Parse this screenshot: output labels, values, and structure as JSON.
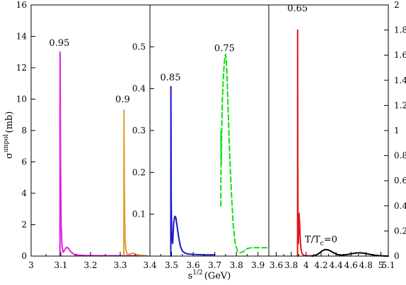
{
  "chart_data": {
    "type": "line",
    "xlabel": "s",
    "xlabel_sup": "1/2",
    "xlabel_unit": "(GeV)",
    "ylabel": "σ",
    "ylabel_sup": "unpol",
    "ylabel_unit": "(mb)",
    "grid": false,
    "panels": [
      {
        "id": "p1",
        "xlim": [
          3.0,
          3.4
        ],
        "ylim": [
          0,
          16
        ],
        "x_ticks": [
          "3",
          "3.1",
          "3.2",
          "3.3",
          "3.4"
        ],
        "y_ticks": [
          "0",
          "2",
          "4",
          "6",
          "8",
          "10",
          "12",
          "14",
          "16"
        ],
        "y_axis_side": "left",
        "series": [
          {
            "color": "#e020e0",
            "dash": false,
            "label": "0.95",
            "label_at": [
              3.095,
              13.4
            ],
            "x": [
              3.097,
              3.0975,
              3.099,
              3.101,
              3.104,
              3.108,
              3.112,
              3.117,
              3.122,
              3.128,
              3.135,
              3.145,
              3.16,
              3.18,
              3.21,
              3.26,
              3.3,
              3.34,
              3.38
            ],
            "y": [
              0.05,
              13.0,
              6.0,
              2.0,
              0.6,
              0.25,
              0.35,
              0.52,
              0.55,
              0.42,
              0.25,
              0.1,
              0.06,
              0.04,
              0.03,
              0.02,
              0.02,
              0.02,
              0.02
            ]
          },
          {
            "color": "#e0a030",
            "dash": false,
            "label": "0.9",
            "label_at": [
              3.308,
              9.8
            ],
            "x": [
              3.312,
              3.3125,
              3.314,
              3.316,
              3.319,
              3.323,
              3.328,
              3.333,
              3.339,
              3.346,
              3.355,
              3.37,
              3.39
            ],
            "y": [
              0.05,
              9.3,
              4.2,
              1.2,
              0.4,
              0.15,
              0.1,
              0.12,
              0.18,
              0.18,
              0.1,
              0.05,
              0.03
            ]
          }
        ]
      },
      {
        "id": "p2",
        "xlim": [
          3.4,
          3.95
        ],
        "ylim": [
          0,
          0.6
        ],
        "x_ticks": [
          "3.5",
          "3.6",
          "3.7",
          "3.8",
          "3.9"
        ],
        "y_ticks": [
          "0.1",
          "0.2",
          "0.3",
          "0.4",
          "0.5"
        ],
        "y_axis_side": "left",
        "series": [
          {
            "color": "#1818d0",
            "dash": false,
            "label": "0.85",
            "label_at": [
              3.495,
              0.42
            ],
            "x": [
              3.4965,
              3.497,
              3.4985,
              3.501,
              3.505,
              3.51,
              3.515,
              3.52,
              3.526,
              3.533,
              3.54,
              3.55,
              3.56,
              3.575,
              3.6,
              3.65,
              3.7
            ],
            "y": [
              0.0,
              0.405,
              0.13,
              0.04,
              0.03,
              0.08,
              0.095,
              0.092,
              0.07,
              0.045,
              0.025,
              0.012,
              0.008,
              0.005,
              0.004,
              0.003,
              0.003
            ]
          },
          {
            "color": "#10e010",
            "dash": true,
            "label": "0.75",
            "label_at": [
              3.745,
              0.49
            ],
            "x": [
              3.728,
              3.729,
              3.73,
              3.732,
              3.735,
              3.738,
              3.741,
              3.744,
              3.747,
              3.75,
              3.753,
              3.756,
              3.76,
              3.765,
              3.77,
              3.778,
              3.786,
              3.795,
              3.805,
              3.815,
              3.83,
              3.85,
              3.87,
              3.9,
              3.94
            ],
            "y": [
              0.12,
              0.3,
              0.22,
              0.3,
              0.37,
              0.41,
              0.44,
              0.46,
              0.475,
              0.482,
              0.47,
              0.44,
              0.38,
              0.3,
              0.23,
              0.14,
              0.07,
              0.03,
              0.012,
              0.008,
              0.01,
              0.018,
              0.02,
              0.02,
              0.02
            ]
          }
        ]
      },
      {
        "id": "p3",
        "xlim": [
          3.5,
          5.1
        ],
        "ylim": [
          0,
          2
        ],
        "x_ticks": [
          "3.6",
          "3.8",
          "4",
          "4.2",
          "4.4",
          "4.6",
          "4.8",
          "5",
          "5.1"
        ],
        "y_ticks": [
          "0",
          "0.2",
          "0.4",
          "0.6",
          "0.8",
          "1",
          "1.2",
          "1.4",
          "1.6",
          "1.8",
          "2"
        ],
        "y_axis_side": "right",
        "series": [
          {
            "color": "#e01818",
            "dash": false,
            "label": "0.65",
            "label_at": [
              3.885,
              1.95
            ],
            "x": [
              3.885,
              3.886,
              3.888,
              3.892,
              3.897,
              3.902,
              3.906,
              3.912,
              3.92,
              3.93,
              3.945,
              3.97,
              4.0,
              4.05,
              4.1
            ],
            "y": [
              0.0,
              1.8,
              0.8,
              0.2,
              0.1,
              0.3,
              0.34,
              0.28,
              0.15,
              0.06,
              0.02,
              0.005,
              0.002,
              0.002,
              0.002
            ]
          },
          {
            "color": "#000000",
            "dash": false,
            "label": "T/T",
            "label_sub": "c",
            "label_tail": "=0",
            "label_at": [
              4.2,
              0.11
            ],
            "x": [
              4.08,
              4.12,
              4.17,
              4.21,
              4.25,
              4.29,
              4.33,
              4.37,
              4.42,
              4.48,
              4.55,
              4.62,
              4.68,
              4.74,
              4.8,
              4.87,
              4.93,
              4.99,
              5.05,
              5.1
            ],
            "y": [
              0.0,
              0.005,
              0.02,
              0.04,
              0.052,
              0.05,
              0.04,
              0.025,
              0.012,
              0.008,
              0.012,
              0.02,
              0.025,
              0.025,
              0.02,
              0.012,
              0.006,
              0.003,
              0.001,
              0.0
            ]
          }
        ]
      }
    ]
  }
}
